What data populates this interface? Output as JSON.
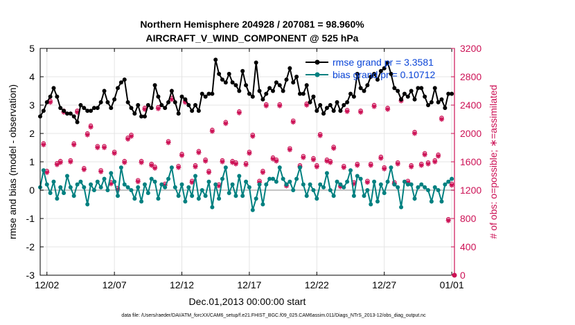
{
  "chart_data": {
    "type": "line",
    "title": "Northern Hemisphere 204928 / 207081 = 98.960%",
    "subtitle": "AIRCRAFT_V_WIND_COMPONENT @ 525 hPa",
    "xlabel": "Dec.01,2013 00:00:00 start",
    "ylabel": "rmse and bias (model - observation)",
    "y2label": "# of obs: o=possible; ∗=assimilated",
    "footer": "data file: /Users/raeder/DAI/ATM_forcXX/CAM6_setup/f.e21.FHIST_BGC.f09_025.CAM6assim.011/Diags_NTrS_2013-12/obs_diag_output.nc",
    "x_tick_labels": [
      "12/02",
      "12/07",
      "12/12",
      "12/17",
      "12/22",
      "12/27",
      "01/01"
    ],
    "x_tick_values": [
      1.5,
      6.5,
      11.5,
      16.5,
      21.5,
      26.5,
      31.5
    ],
    "xlim": [
      1.0,
      31.7
    ],
    "ylim": [
      -3,
      5
    ],
    "y_ticks": [
      -3,
      -2,
      -1,
      0,
      1,
      2,
      3,
      4,
      5
    ],
    "y2lim": [
      0,
      3200
    ],
    "y2_ticks": [
      0,
      400,
      800,
      1200,
      1600,
      2000,
      2400,
      2800,
      3200
    ],
    "grid": true,
    "legend_position": "top-right",
    "colors": {
      "rmse": "#000000",
      "bias": "#008080",
      "obs": "#cc1155",
      "zero_line": "#bbbbbb",
      "y2_axis": "#cc1155",
      "legend_text": "#0a45d8"
    },
    "series": [
      {
        "name": "rmse grand pr = 3.3581",
        "axis": "left",
        "x": [
          1.0,
          1.25,
          1.5,
          1.75,
          2.0,
          2.25,
          2.5,
          2.75,
          3.0,
          3.25,
          3.5,
          3.75,
          4.0,
          4.25,
          4.5,
          4.75,
          5.0,
          5.25,
          5.5,
          5.75,
          6.0,
          6.25,
          6.5,
          6.75,
          7.0,
          7.25,
          7.5,
          7.75,
          8.0,
          8.25,
          8.5,
          8.75,
          9.0,
          9.25,
          9.5,
          9.75,
          10.0,
          10.25,
          10.5,
          10.75,
          11.0,
          11.25,
          11.5,
          11.75,
          12.0,
          12.25,
          12.5,
          12.75,
          13.0,
          13.25,
          13.5,
          13.75,
          14.0,
          14.25,
          14.5,
          14.75,
          15.0,
          15.25,
          15.5,
          15.75,
          16.0,
          16.25,
          16.5,
          16.75,
          17.0,
          17.25,
          17.5,
          17.75,
          18.0,
          18.25,
          18.5,
          18.75,
          19.0,
          19.25,
          19.5,
          19.75,
          20.0,
          20.25,
          20.5,
          20.75,
          21.0,
          21.25,
          21.5,
          21.75,
          22.0,
          22.25,
          22.5,
          22.75,
          23.0,
          23.25,
          23.5,
          23.75,
          24.0,
          24.25,
          24.5,
          24.75,
          25.0,
          25.25,
          25.5,
          25.75,
          26.0,
          26.25,
          26.5,
          26.75,
          27.0,
          27.25,
          27.5,
          27.75,
          28.0,
          28.25,
          28.5,
          28.75,
          29.0,
          29.25,
          29.5,
          29.75,
          30.0,
          30.25,
          30.5,
          30.75,
          31.0,
          31.25,
          31.5
        ],
        "values": [
          2.6,
          2.8,
          3.1,
          3.3,
          3.6,
          3.3,
          2.9,
          2.8,
          2.7,
          2.7,
          2.6,
          2.4,
          3.0,
          2.9,
          2.8,
          2.8,
          2.9,
          2.9,
          3.1,
          3.5,
          3.1,
          2.9,
          3.2,
          3.6,
          3.8,
          3.9,
          3.1,
          2.9,
          2.7,
          3.0,
          2.6,
          2.6,
          3.0,
          2.9,
          3.7,
          3.3,
          3.0,
          2.9,
          3.1,
          3.5,
          3.1,
          2.7,
          3.3,
          3.2,
          3.0,
          2.8,
          3.0,
          2.8,
          3.4,
          3.3,
          3.4,
          3.4,
          4.6,
          4.1,
          3.9,
          3.8,
          4.1,
          3.8,
          3.7,
          3.5,
          4.2,
          3.7,
          3.4,
          3.3,
          4.5,
          3.5,
          3.2,
          3.4,
          3.6,
          3.5,
          3.8,
          3.7,
          3.5,
          3.9,
          4.3,
          3.8,
          4.0,
          3.4,
          3.4,
          3.7,
          3.1,
          3.3,
          2.8,
          3.0,
          2.7,
          2.9,
          3.0,
          2.8,
          3.1,
          2.8,
          3.0,
          3.1,
          3.4,
          3.3,
          4.1,
          3.6,
          3.5,
          3.7,
          4.0,
          4.1,
          3.9,
          4.2,
          4.3,
          4.5,
          4.1,
          3.6,
          3.5,
          3.2,
          3.4,
          3.3,
          3.5,
          3.2,
          3.6,
          3.6,
          3.3,
          3.0,
          3.1,
          3.6,
          3.1,
          3.2,
          2.9,
          3.4,
          3.4
        ]
      },
      {
        "name": "bias grand pr = 0.10712",
        "axis": "left",
        "x": [
          1.0,
          1.25,
          1.5,
          1.75,
          2.0,
          2.25,
          2.5,
          2.75,
          3.0,
          3.25,
          3.5,
          3.75,
          4.0,
          4.25,
          4.5,
          4.75,
          5.0,
          5.25,
          5.5,
          5.75,
          6.0,
          6.25,
          6.5,
          6.75,
          7.0,
          7.25,
          7.5,
          7.75,
          8.0,
          8.25,
          8.5,
          8.75,
          9.0,
          9.25,
          9.5,
          9.75,
          10.0,
          10.25,
          10.5,
          10.75,
          11.0,
          11.25,
          11.5,
          11.75,
          12.0,
          12.25,
          12.5,
          12.75,
          13.0,
          13.25,
          13.5,
          13.75,
          14.0,
          14.25,
          14.5,
          14.75,
          15.0,
          15.25,
          15.5,
          15.75,
          16.0,
          16.25,
          16.5,
          16.75,
          17.0,
          17.25,
          17.5,
          17.75,
          18.0,
          18.25,
          18.5,
          18.75,
          19.0,
          19.25,
          19.5,
          19.75,
          20.0,
          20.25,
          20.5,
          20.75,
          21.0,
          21.25,
          21.5,
          21.75,
          22.0,
          22.25,
          22.5,
          22.75,
          23.0,
          23.25,
          23.5,
          23.75,
          24.0,
          24.25,
          24.5,
          24.75,
          25.0,
          25.25,
          25.5,
          25.75,
          26.0,
          26.25,
          26.5,
          26.75,
          27.0,
          27.25,
          27.5,
          27.75,
          28.0,
          28.25,
          28.5,
          28.75,
          29.0,
          29.25,
          29.5,
          29.75,
          30.0,
          30.25,
          30.5,
          30.75,
          31.0,
          31.25,
          31.5
        ],
        "values": [
          0.1,
          0.7,
          0.2,
          -0.1,
          0.3,
          -0.3,
          0.1,
          -0.1,
          0.5,
          0.1,
          -0.2,
          0.2,
          0.3,
          0.1,
          -0.5,
          0.2,
          0.0,
          0.3,
          0.1,
          0.4,
          0.0,
          0.6,
          0.3,
          -0.2,
          0.8,
          0.2,
          0.1,
          0.0,
          -0.3,
          0.1,
          -0.4,
          0.2,
          -0.1,
          0.4,
          0.3,
          -0.3,
          0.2,
          0.1,
          0.4,
          0.8,
          0.1,
          -0.2,
          0.2,
          -0.4,
          0.1,
          -0.2,
          0.5,
          -0.3,
          0.0,
          -0.2,
          0.3,
          -0.6,
          0.2,
          -0.3,
          0.4,
          0.8,
          -0.1,
          0.2,
          -0.2,
          0.5,
          -0.2,
          0.3,
          0.1,
          -0.7,
          -0.3,
          0.2,
          -0.5,
          0.2,
          0.4,
          0.4,
          0.3,
          0.8,
          0.4,
          0.2,
          0.3,
          0.0,
          0.4,
          0.8,
          0.2,
          -0.2,
          0.2,
          0.0,
          -0.3,
          0.2,
          0.1,
          0.6,
          0.0,
          -0.2,
          0.3,
          0.2,
          0.1,
          0.3,
          0.7,
          -0.2,
          0.5,
          0.4,
          -0.2,
          0.0,
          -0.5,
          0.3,
          -0.4,
          0.2,
          -0.1,
          0.3,
          0.8,
          0.2,
          0.1,
          -0.6,
          0.3,
          0.2,
          0.2,
          -0.3,
          0.1,
          0.2,
          0.1,
          0.0,
          -0.4,
          0.1,
          0.0,
          -0.4,
          0.2,
          0.3,
          0.4
        ]
      },
      {
        "name": "assimilated",
        "axis": "right",
        "marker": "asterisk",
        "x": [
          1.25,
          2.25,
          3.25,
          4.25,
          5.25,
          6.25,
          7.25,
          8.25,
          9.25,
          10.25,
          11.25,
          12.25,
          13.25,
          14.25,
          15.25,
          16.25,
          17.25,
          18.25,
          19.25,
          20.25,
          21.25,
          22.25,
          23.25,
          24.25,
          25.25,
          26.25,
          27.25,
          28.25,
          29.25,
          30.25,
          31.25,
          1.75,
          2.75,
          3.75,
          4.75,
          5.75,
          6.75,
          7.75,
          8.75,
          9.75,
          10.75,
          11.75,
          12.75,
          13.75,
          14.75,
          15.75,
          16.75,
          17.75,
          18.75,
          19.75,
          20.75,
          21.75,
          22.75,
          23.75,
          24.75,
          25.75,
          26.75,
          27.75,
          28.75,
          29.75,
          30.75,
          1.5,
          2.5,
          3.5,
          4.5,
          5.5,
          6.5,
          7.5,
          8.5,
          9.5,
          10.5,
          11.5,
          12.5,
          13.5,
          14.5,
          15.5,
          16.5,
          17.5,
          18.5,
          19.5,
          20.5,
          21.5,
          22.5,
          23.5,
          24.5,
          25.5,
          26.5,
          27.5,
          28.5,
          29.5,
          30.5,
          31.5
        ],
        "values": [
          1840,
          1560,
          1600,
          1490,
          1800,
          1290,
          1590,
          1320,
          1550,
          1270,
          1520,
          1310,
          1610,
          1260,
          1590,
          1560,
          1310,
          1640,
          1260,
          1530,
          1630,
          1610,
          1250,
          1290,
          1310,
          1650,
          1290,
          1310,
          1550,
          1600,
          770,
          2440,
          2300,
          2300,
          2090,
          1800,
          1210,
          1960,
          2340,
          2350,
          2480,
          2440,
          1730,
          2030,
          2140,
          2290,
          1960,
          2390,
          2390,
          2160,
          2400,
          1970,
          1790,
          2310,
          2300,
          2380,
          2340,
          2460,
          2000,
          1570,
          2200,
          1450,
          1590,
          1840,
          1980,
          1460,
          1720,
          1920,
          1590,
          1510,
          1870,
          1690,
          1530,
          1450,
          1600,
          1570,
          1720,
          1450,
          1610,
          1770,
          1660,
          1530,
          1590,
          1520,
          1550,
          1550,
          1500,
          1570,
          1530,
          1700,
          1680,
          1270
        ]
      },
      {
        "name": "possible",
        "axis": "right",
        "marker": "circle",
        "x": [
          1.25,
          2.25,
          3.25,
          4.25,
          5.25,
          6.25,
          7.25,
          8.25,
          9.25,
          10.25,
          11.25,
          12.25,
          13.25,
          14.25,
          15.25,
          16.25,
          17.25,
          18.25,
          19.25,
          20.25,
          21.25,
          22.25,
          23.25,
          24.25,
          25.25,
          26.25,
          27.25,
          28.25,
          29.25,
          30.25,
          31.25,
          1.75,
          2.75,
          3.75,
          4.75,
          5.75,
          6.75,
          7.75,
          8.75,
          9.75,
          10.75,
          11.75,
          12.75,
          13.75,
          14.75,
          15.75,
          16.75,
          17.75,
          18.75,
          19.75,
          20.75,
          21.75,
          22.75,
          23.75,
          24.75,
          25.75,
          26.75,
          27.75,
          28.75,
          29.75,
          30.75,
          1.5,
          2.5,
          3.5,
          4.5,
          5.5,
          6.5,
          7.5,
          8.5,
          9.5,
          10.5,
          11.5,
          12.5,
          13.5,
          14.5,
          15.5,
          16.5,
          17.5,
          18.5,
          19.5,
          20.5,
          21.5,
          22.5,
          23.5,
          24.5,
          25.5,
          26.5,
          27.5,
          28.5,
          29.5,
          30.5,
          31.5
        ],
        "values": [
          1860,
          1580,
          1620,
          1510,
          1820,
          1310,
          1610,
          1340,
          1570,
          1290,
          1540,
          1330,
          1630,
          1280,
          1610,
          1580,
          1330,
          1660,
          1280,
          1550,
          1650,
          1630,
          1270,
          1310,
          1330,
          1670,
          1310,
          1330,
          1570,
          1620,
          790,
          2460,
          2320,
          2320,
          2110,
          1820,
          1230,
          1980,
          2360,
          2370,
          2500,
          2460,
          1750,
          2050,
          2160,
          2310,
          1980,
          2410,
          2410,
          2180,
          2420,
          1990,
          1810,
          2330,
          2320,
          2400,
          2360,
          2480,
          2020,
          1590,
          2220,
          1470,
          1610,
          1860,
          2000,
          1480,
          1740,
          1940,
          1610,
          1530,
          1890,
          1710,
          1550,
          1470,
          1620,
          1590,
          1740,
          1470,
          1630,
          1790,
          1680,
          1550,
          1610,
          1540,
          1570,
          1570,
          1520,
          1590,
          1550,
          1720,
          1700,
          1290
        ]
      }
    ]
  }
}
